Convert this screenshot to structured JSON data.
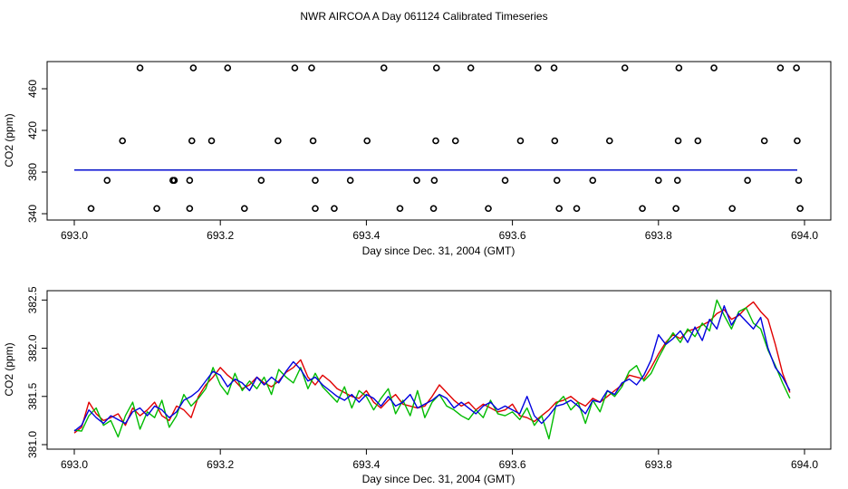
{
  "title": "NWR AIRCOA A  Day 061124  Calibrated Timeseries",
  "colors": {
    "red": "#e00000",
    "green": "#00bb00",
    "blue": "#0000e0",
    "axis": "#000000"
  },
  "chart_data": [
    {
      "type": "scatter",
      "panel": "top",
      "xlabel": "Day since Dec. 31, 2004 (GMT)",
      "ylabel": "CO2 (ppm)",
      "xlim": [
        693.0,
        694.0
      ],
      "ylim": [
        340,
        480
      ],
      "xticks": [
        693.0,
        693.2,
        693.4,
        693.6,
        693.8,
        694.0
      ],
      "xtick_labels": [
        "693.0",
        "693.2",
        "693.4",
        "693.6",
        "693.8",
        "694.0"
      ],
      "yticks": [
        340,
        380,
        420,
        460
      ],
      "ytick_labels": [
        "340",
        "380",
        "420",
        "460"
      ],
      "reference_points": [
        {
          "x": 693.09,
          "y": 480
        },
        {
          "x": 693.163,
          "y": 480
        },
        {
          "x": 693.21,
          "y": 480
        },
        {
          "x": 693.302,
          "y": 480
        },
        {
          "x": 693.325,
          "y": 480
        },
        {
          "x": 693.424,
          "y": 480
        },
        {
          "x": 693.496,
          "y": 480
        },
        {
          "x": 693.543,
          "y": 480
        },
        {
          "x": 693.635,
          "y": 480
        },
        {
          "x": 693.657,
          "y": 480
        },
        {
          "x": 693.754,
          "y": 480
        },
        {
          "x": 693.828,
          "y": 480
        },
        {
          "x": 693.876,
          "y": 480
        },
        {
          "x": 693.967,
          "y": 480
        },
        {
          "x": 693.989,
          "y": 480
        },
        {
          "x": 693.066,
          "y": 410
        },
        {
          "x": 693.161,
          "y": 410
        },
        {
          "x": 693.188,
          "y": 410
        },
        {
          "x": 693.279,
          "y": 410
        },
        {
          "x": 693.327,
          "y": 410
        },
        {
          "x": 693.401,
          "y": 410
        },
        {
          "x": 693.495,
          "y": 410
        },
        {
          "x": 693.522,
          "y": 410
        },
        {
          "x": 693.611,
          "y": 410
        },
        {
          "x": 693.658,
          "y": 410
        },
        {
          "x": 693.733,
          "y": 410
        },
        {
          "x": 693.827,
          "y": 410
        },
        {
          "x": 693.854,
          "y": 410
        },
        {
          "x": 693.945,
          "y": 410
        },
        {
          "x": 693.99,
          "y": 410
        },
        {
          "x": 693.045,
          "y": 372
        },
        {
          "x": 693.135,
          "y": 372
        },
        {
          "x": 693.137,
          "y": 372
        },
        {
          "x": 693.158,
          "y": 372
        },
        {
          "x": 693.256,
          "y": 372
        },
        {
          "x": 693.33,
          "y": 372
        },
        {
          "x": 693.378,
          "y": 372
        },
        {
          "x": 693.469,
          "y": 372
        },
        {
          "x": 693.493,
          "y": 372
        },
        {
          "x": 693.59,
          "y": 372
        },
        {
          "x": 693.661,
          "y": 372
        },
        {
          "x": 693.71,
          "y": 372
        },
        {
          "x": 693.8,
          "y": 372
        },
        {
          "x": 693.826,
          "y": 372
        },
        {
          "x": 693.922,
          "y": 372
        },
        {
          "x": 693.992,
          "y": 372
        },
        {
          "x": 693.023,
          "y": 345
        },
        {
          "x": 693.113,
          "y": 345
        },
        {
          "x": 693.158,
          "y": 345
        },
        {
          "x": 693.233,
          "y": 345
        },
        {
          "x": 693.33,
          "y": 345
        },
        {
          "x": 693.356,
          "y": 345
        },
        {
          "x": 693.446,
          "y": 345
        },
        {
          "x": 693.492,
          "y": 345
        },
        {
          "x": 693.567,
          "y": 345
        },
        {
          "x": 693.664,
          "y": 345
        },
        {
          "x": 693.688,
          "y": 345
        },
        {
          "x": 693.778,
          "y": 345
        },
        {
          "x": 693.824,
          "y": 345
        },
        {
          "x": 693.901,
          "y": 345
        },
        {
          "x": 693.994,
          "y": 345
        }
      ],
      "series": [
        {
          "name": "red",
          "color": "#e00000",
          "segments": [
            [
              693.0,
              381.9
            ],
            [
              693.99,
              381.9
            ]
          ]
        },
        {
          "name": "green",
          "color": "#00bb00",
          "segments": [
            [
              693.0,
              381.9
            ],
            [
              693.99,
              381.9
            ]
          ]
        },
        {
          "name": "blue",
          "color": "#0000e0",
          "segments": [
            [
              693.0,
              381.9
            ],
            [
              693.99,
              381.9
            ]
          ]
        }
      ]
    },
    {
      "type": "line",
      "panel": "bottom",
      "xlabel": "Day since Dec. 31, 2004 (GMT)",
      "ylabel": "CO2 (ppm)",
      "xlim": [
        693.0,
        694.0
      ],
      "ylim": [
        381.0,
        382.55
      ],
      "xticks": [
        693.0,
        693.2,
        693.4,
        693.6,
        693.8,
        694.0
      ],
      "xtick_labels": [
        "693.0",
        "693.2",
        "693.4",
        "693.6",
        "693.8",
        "694.0"
      ],
      "yticks": [
        381.0,
        381.5,
        382.0,
        382.5
      ],
      "ytick_labels": [
        "381.0",
        "381.5",
        "382.0",
        "382.5"
      ],
      "series": [
        {
          "name": "red",
          "color": "#e00000",
          "x": [
            693.0,
            693.01,
            693.02,
            693.03,
            693.04,
            693.05,
            693.06,
            693.07,
            693.08,
            693.09,
            693.1,
            693.11,
            693.12,
            693.13,
            693.14,
            693.15,
            693.16,
            693.17,
            693.18,
            693.19,
            693.2,
            693.21,
            693.22,
            693.23,
            693.24,
            693.25,
            693.26,
            693.27,
            693.28,
            693.29,
            693.3,
            693.31,
            693.32,
            693.33,
            693.34,
            693.35,
            693.36,
            693.37,
            693.38,
            693.39,
            693.4,
            693.41,
            693.42,
            693.43,
            693.44,
            693.45,
            693.46,
            693.47,
            693.48,
            693.49,
            693.5,
            693.51,
            693.52,
            693.53,
            693.54,
            693.55,
            693.56,
            693.57,
            693.58,
            693.59,
            693.6,
            693.61,
            693.62,
            693.63,
            693.64,
            693.65,
            693.66,
            693.67,
            693.68,
            693.69,
            693.7,
            693.71,
            693.72,
            693.73,
            693.74,
            693.75,
            693.76,
            693.77,
            693.78,
            693.79,
            693.8,
            693.81,
            693.82,
            693.83,
            693.84,
            693.85,
            693.86,
            693.87,
            693.88,
            693.89,
            693.9,
            693.91,
            693.92,
            693.93,
            693.94,
            693.95,
            693.96,
            693.97,
            693.98
          ],
          "values": [
            381.12,
            381.18,
            381.44,
            381.32,
            381.25,
            381.28,
            381.32,
            381.2,
            381.38,
            381.3,
            381.36,
            381.44,
            381.3,
            381.25,
            381.4,
            381.36,
            381.28,
            381.5,
            381.62,
            381.7,
            381.8,
            381.72,
            381.66,
            381.58,
            381.62,
            381.7,
            381.64,
            381.6,
            381.66,
            381.75,
            381.8,
            381.88,
            381.7,
            381.62,
            381.72,
            381.66,
            381.58,
            381.54,
            381.5,
            381.48,
            381.56,
            381.44,
            381.38,
            381.46,
            381.52,
            381.42,
            381.4,
            381.38,
            381.4,
            381.5,
            381.62,
            381.54,
            381.46,
            381.4,
            381.44,
            381.36,
            381.42,
            381.38,
            381.34,
            381.36,
            381.42,
            381.3,
            381.28,
            381.24,
            381.3,
            381.36,
            381.44,
            381.46,
            381.5,
            381.44,
            381.4,
            381.48,
            381.44,
            381.5,
            381.56,
            381.62,
            381.72,
            381.7,
            381.68,
            381.8,
            381.94,
            382.06,
            382.14,
            382.1,
            382.18,
            382.2,
            382.24,
            382.28,
            382.36,
            382.4,
            382.3,
            382.34,
            382.42,
            382.48,
            382.38,
            382.3,
            382.04,
            381.74,
            381.54
          ]
        },
        {
          "name": "green",
          "color": "#00bb00",
          "x": [
            693.0,
            693.01,
            693.02,
            693.03,
            693.04,
            693.05,
            693.06,
            693.07,
            693.08,
            693.09,
            693.1,
            693.11,
            693.12,
            693.13,
            693.14,
            693.15,
            693.16,
            693.17,
            693.18,
            693.19,
            693.2,
            693.21,
            693.22,
            693.23,
            693.24,
            693.25,
            693.26,
            693.27,
            693.28,
            693.29,
            693.3,
            693.31,
            693.32,
            693.33,
            693.34,
            693.35,
            693.36,
            693.37,
            693.38,
            693.39,
            693.4,
            693.41,
            693.42,
            693.43,
            693.44,
            693.45,
            693.46,
            693.47,
            693.48,
            693.49,
            693.5,
            693.51,
            693.52,
            693.53,
            693.54,
            693.55,
            693.56,
            693.57,
            693.58,
            693.59,
            693.6,
            693.61,
            693.62,
            693.63,
            693.64,
            693.65,
            693.66,
            693.67,
            693.68,
            693.69,
            693.7,
            693.71,
            693.72,
            693.73,
            693.74,
            693.75,
            693.76,
            693.77,
            693.78,
            693.79,
            693.8,
            693.81,
            693.82,
            693.83,
            693.84,
            693.85,
            693.86,
            693.87,
            693.88,
            693.89,
            693.9,
            693.91,
            693.92,
            693.93,
            693.94,
            693.95,
            693.96,
            693.97,
            693.98
          ],
          "values": [
            381.15,
            381.14,
            381.3,
            381.38,
            381.2,
            381.25,
            381.08,
            381.3,
            381.44,
            381.16,
            381.34,
            381.28,
            381.46,
            381.18,
            381.3,
            381.52,
            381.4,
            381.48,
            381.58,
            381.8,
            381.62,
            381.52,
            381.74,
            381.56,
            381.66,
            381.58,
            381.7,
            381.52,
            381.78,
            381.7,
            381.64,
            381.8,
            381.58,
            381.74,
            381.6,
            381.52,
            381.44,
            381.6,
            381.38,
            381.56,
            381.5,
            381.36,
            381.48,
            381.58,
            381.32,
            381.46,
            381.3,
            381.56,
            381.28,
            381.44,
            381.52,
            381.4,
            381.36,
            381.3,
            381.26,
            381.36,
            381.28,
            381.46,
            381.32,
            381.3,
            381.34,
            381.26,
            381.38,
            381.2,
            381.3,
            381.06,
            381.42,
            381.5,
            381.36,
            381.44,
            381.22,
            381.46,
            381.34,
            381.56,
            381.5,
            381.6,
            381.76,
            381.82,
            381.66,
            381.74,
            381.9,
            382.04,
            382.16,
            382.06,
            382.2,
            382.12,
            382.26,
            382.18,
            382.5,
            382.34,
            382.2,
            382.38,
            382.42,
            382.26,
            382.2,
            381.98,
            381.82,
            381.64,
            381.48
          ]
        },
        {
          "name": "blue",
          "color": "#0000e0",
          "x": [
            693.0,
            693.01,
            693.02,
            693.03,
            693.04,
            693.05,
            693.06,
            693.07,
            693.08,
            693.09,
            693.1,
            693.11,
            693.12,
            693.13,
            693.14,
            693.15,
            693.16,
            693.17,
            693.18,
            693.19,
            693.2,
            693.21,
            693.22,
            693.23,
            693.24,
            693.25,
            693.26,
            693.27,
            693.28,
            693.29,
            693.3,
            693.31,
            693.32,
            693.33,
            693.34,
            693.35,
            693.36,
            693.37,
            693.38,
            693.39,
            693.4,
            693.41,
            693.42,
            693.43,
            693.44,
            693.45,
            693.46,
            693.47,
            693.48,
            693.49,
            693.5,
            693.51,
            693.52,
            693.53,
            693.54,
            693.55,
            693.56,
            693.57,
            693.58,
            693.59,
            693.6,
            693.61,
            693.62,
            693.63,
            693.64,
            693.65,
            693.66,
            693.67,
            693.68,
            693.69,
            693.7,
            693.71,
            693.72,
            693.73,
            693.74,
            693.75,
            693.76,
            693.77,
            693.78,
            693.79,
            693.8,
            693.81,
            693.82,
            693.83,
            693.84,
            693.85,
            693.86,
            693.87,
            693.88,
            693.89,
            693.9,
            693.91,
            693.92,
            693.93,
            693.94,
            693.95,
            693.96,
            693.97,
            693.98
          ],
          "values": [
            381.14,
            381.2,
            381.36,
            381.28,
            381.22,
            381.3,
            381.26,
            381.22,
            381.34,
            381.38,
            381.3,
            381.4,
            381.36,
            381.28,
            381.34,
            381.46,
            381.5,
            381.56,
            381.66,
            381.76,
            381.72,
            381.6,
            381.68,
            381.64,
            381.56,
            381.7,
            381.62,
            381.7,
            381.64,
            381.76,
            381.86,
            381.78,
            381.66,
            381.7,
            381.62,
            381.56,
            381.5,
            381.46,
            381.52,
            381.44,
            381.52,
            381.48,
            381.4,
            381.5,
            381.4,
            381.44,
            381.52,
            381.38,
            381.42,
            381.46,
            381.52,
            381.48,
            381.38,
            381.44,
            381.38,
            381.32,
            381.4,
            381.44,
            381.36,
            381.4,
            381.36,
            381.32,
            381.5,
            381.3,
            381.22,
            381.3,
            381.4,
            381.42,
            381.46,
            381.4,
            381.32,
            381.46,
            381.44,
            381.56,
            381.52,
            381.64,
            381.68,
            381.62,
            381.72,
            381.88,
            382.14,
            382.04,
            382.1,
            382.18,
            382.06,
            382.22,
            382.08,
            382.3,
            382.2,
            382.44,
            382.24,
            382.36,
            382.28,
            382.2,
            382.32,
            382.0,
            381.8,
            381.7,
            381.56
          ]
        }
      ]
    }
  ]
}
